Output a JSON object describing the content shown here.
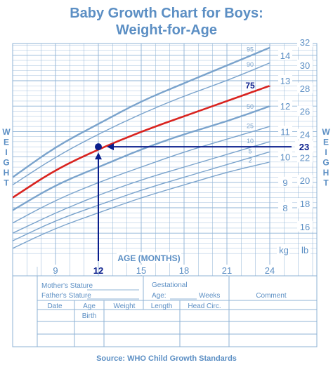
{
  "title_line1": "Baby Growth Chart for Boys:",
  "title_line2": "Weight-for-Age",
  "source": "Source: WHO Child Growth Standards",
  "colors": {
    "title": "#5c8fc4",
    "grid": "#8fb3d6",
    "percentile": "#7aa3cc",
    "highlight": "#d9231f",
    "marker": "#0a1e8c"
  },
  "chart_data": {
    "type": "line",
    "xlabel": "AGE (MONTHS)",
    "left_axis_label": "WEIGHT",
    "right_axis_label": "WEIGHT",
    "left_unit": "kg",
    "right_unit": "lb",
    "x_tick_labels": [
      "9",
      "12",
      "15",
      "18",
      "21",
      "24"
    ],
    "kg_tick_labels": [
      "8",
      "9",
      "10",
      "11",
      "12",
      "13",
      "14"
    ],
    "lb_tick_labels": [
      "16",
      "18",
      "20",
      "22",
      "24",
      "26",
      "28",
      "30",
      "32"
    ],
    "xlim": [
      6,
      24
    ],
    "ylim_kg": [
      6.3,
      15
    ],
    "grid": true,
    "x": [
      6,
      9,
      12,
      15,
      18,
      21,
      24
    ],
    "series": [
      {
        "name": "2",
        "values": [
          6.4,
          7.2,
          7.8,
          8.4,
          8.9,
          9.4,
          9.8
        ]
      },
      {
        "name": "5",
        "values": [
          6.7,
          7.5,
          8.1,
          8.7,
          9.2,
          9.7,
          10.2
        ]
      },
      {
        "name": "10",
        "values": [
          7.0,
          7.8,
          8.5,
          9.1,
          9.6,
          10.1,
          10.6
        ]
      },
      {
        "name": "25",
        "values": [
          7.4,
          8.3,
          9.0,
          9.6,
          10.2,
          10.7,
          11.2
        ]
      },
      {
        "name": "50",
        "values": [
          7.9,
          8.9,
          9.6,
          10.3,
          10.9,
          11.4,
          12.0
        ]
      },
      {
        "name": "75",
        "values": [
          8.4,
          9.5,
          10.3,
          11.0,
          11.6,
          12.2,
          12.8
        ]
      },
      {
        "name": "90",
        "values": [
          8.9,
          10.0,
          10.9,
          11.7,
          12.4,
          13.0,
          13.7
        ]
      },
      {
        "name": "95",
        "values": [
          9.2,
          10.4,
          11.3,
          12.2,
          12.9,
          13.6,
          14.3
        ]
      }
    ],
    "highlighted_series": "75",
    "point": {
      "x": 12,
      "y_kg": 10.4,
      "x_label": "12",
      "y_label": "23"
    }
  },
  "table": {
    "mothers_stature": "Mother's Stature",
    "fathers_stature": "Father's Stature",
    "gestational": "Gestational",
    "age": "Age:",
    "weeks": "Weeks",
    "comment": "Comment",
    "col_date": "Date",
    "col_age": "Age",
    "col_birth": "Birth",
    "col_weight": "Weight",
    "col_length": "Length",
    "col_head": "Head Circ."
  }
}
